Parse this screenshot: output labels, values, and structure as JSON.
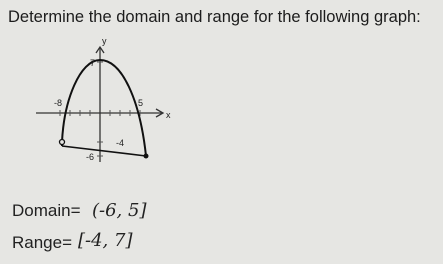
{
  "title": "Determine the domain and range for the following graph:",
  "graph": {
    "y_axis_label": "y",
    "x_axis_label": "x",
    "labels": [
      "7",
      "-8",
      "5",
      "-4",
      "-6"
    ]
  },
  "answers": {
    "domain_label": "Domain=",
    "domain_value": "(-6, 5]",
    "range_label": "Range=",
    "range_value": "[-4, 7]"
  }
}
